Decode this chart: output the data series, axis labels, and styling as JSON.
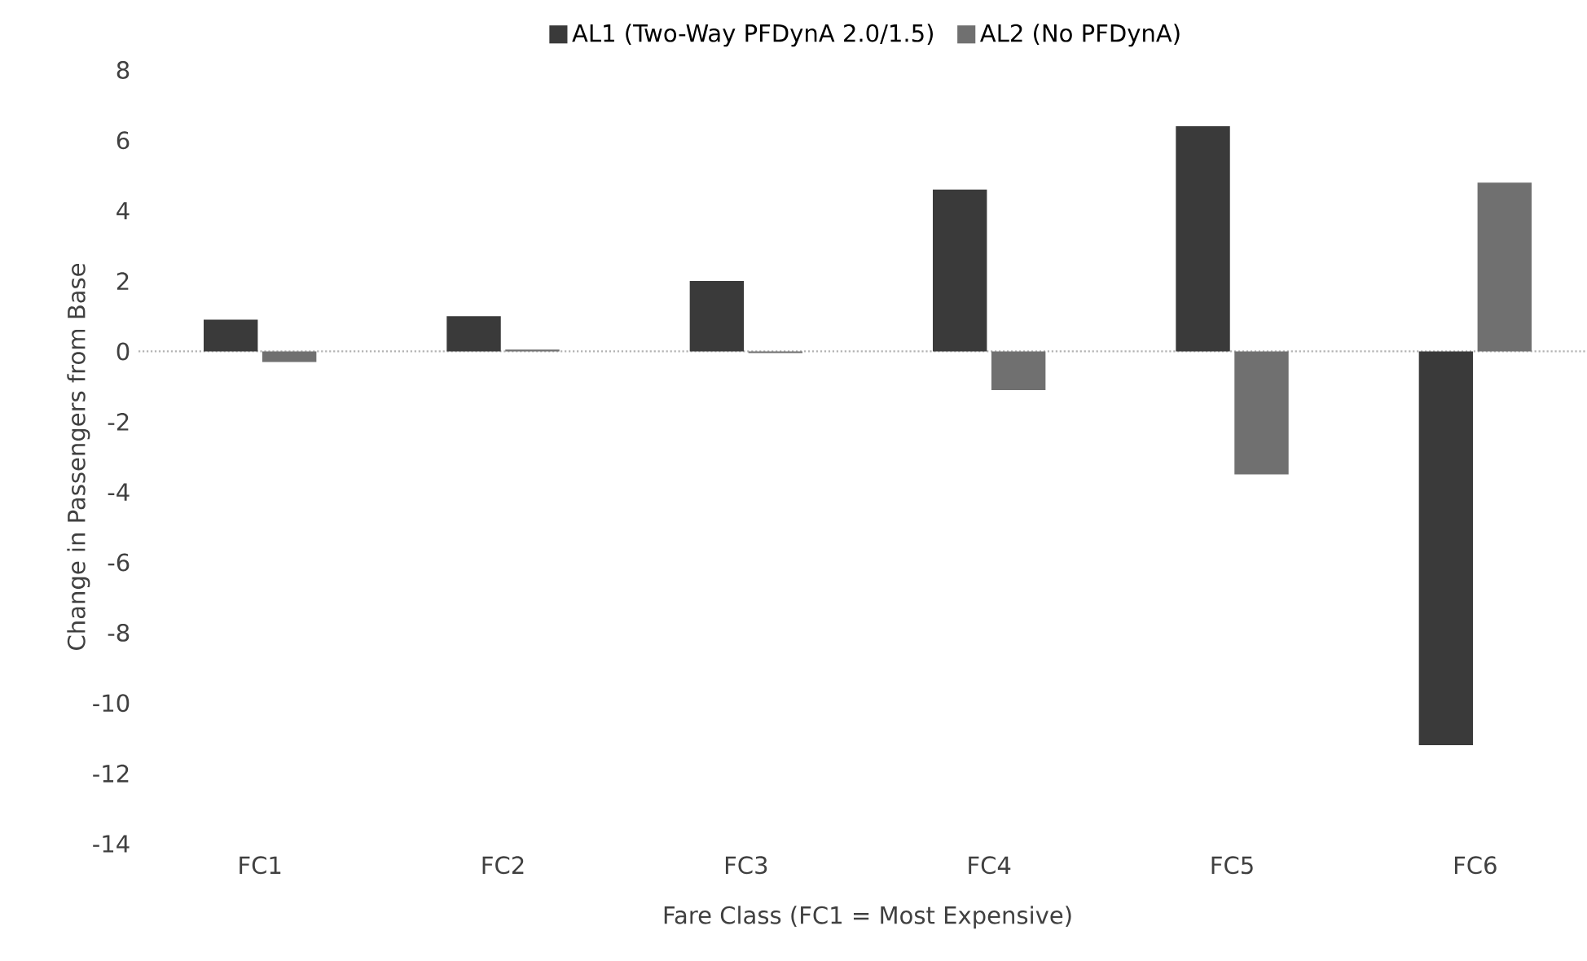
{
  "chart_data": {
    "type": "bar",
    "xlabel": "Fare Class (FC1 = Most Expensive)",
    "ylabel": "Change in Passengers from Base",
    "categories": [
      "FC1",
      "FC2",
      "FC3",
      "FC4",
      "FC5",
      "FC6"
    ],
    "series": [
      {
        "name": "AL1 (Two-Way PFDynA 2.0/1.5)",
        "color": "#3a3a3a",
        "values": [
          0.9,
          1.0,
          2.0,
          4.6,
          6.4,
          -11.2
        ]
      },
      {
        "name": "AL2 (No PFDynA)",
        "color": "#707070",
        "values": [
          -0.3,
          0.05,
          -0.05,
          -1.1,
          -3.5,
          4.8
        ]
      }
    ],
    "ylim": [
      -14,
      8
    ],
    "yticks": [
      -14,
      -12,
      -10,
      -8,
      -6,
      -4,
      -2,
      0,
      2,
      4,
      6,
      8
    ],
    "legend": "top"
  }
}
